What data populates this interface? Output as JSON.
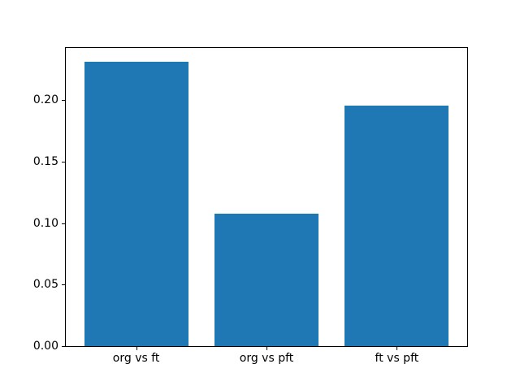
{
  "figure": {
    "background": "#ffffff",
    "spine_color": "#000000"
  },
  "chart_data": {
    "type": "bar",
    "title": "",
    "xlabel": "",
    "ylabel": "",
    "categories": [
      "org vs ft",
      "org vs pft",
      "ft vs pft"
    ],
    "values": [
      0.232,
      0.108,
      0.196
    ],
    "bar_color": "#1f77b4",
    "ylim": [
      0,
      0.243
    ],
    "xlim": [
      -0.54,
      2.54
    ],
    "bar_width_units": 0.8,
    "yticks": [
      0,
      0.05,
      0.1,
      0.15,
      0.2
    ],
    "ytick_labels": [
      "0.00",
      "0.05",
      "0.10",
      "0.15",
      "0.20"
    ],
    "grid": false,
    "legend": "none"
  }
}
